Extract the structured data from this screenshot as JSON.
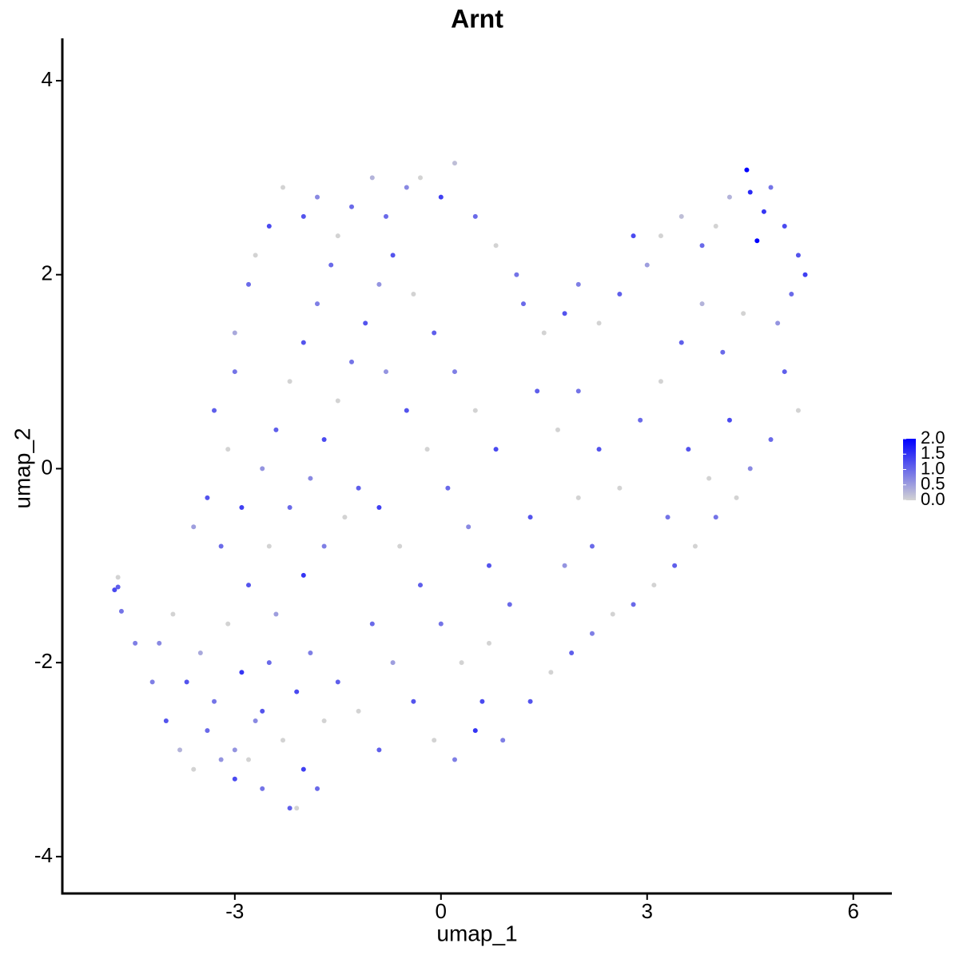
{
  "chart_data": {
    "type": "scatter",
    "title": "Arnt",
    "x_label": "umap_1",
    "y_label": "umap_2",
    "x": [
      -4.2,
      -4.0,
      -3.8,
      -3.6,
      -3.4,
      -3.2,
      -3.0,
      -2.8,
      -2.6,
      -2.2,
      -2.1,
      -2.0,
      -1.8,
      -4.1,
      -3.9,
      -3.7,
      -3.5,
      -3.3,
      -3.1,
      -2.9,
      -2.7,
      -2.5,
      -2.3,
      -2.1,
      -1.9,
      -1.7,
      -1.5,
      -2.4,
      -4.75,
      -4.7,
      -4.7,
      -4.45,
      -4.65,
      -3.0,
      -2.6,
      -3.2,
      -3.4,
      -3.1,
      -3.3,
      -3.0,
      -3.0,
      -2.8,
      -2.7,
      -2.5,
      -2.3,
      -2.0,
      -1.8,
      -1.5,
      -1.3,
      -1.0,
      -2.9,
      -2.6,
      -2.4,
      -2.2,
      -2.0,
      -1.8,
      -1.6,
      -2.5,
      -2.2,
      -1.9,
      -1.7,
      -1.5,
      -1.3,
      -1.1,
      -0.9,
      -2.0,
      -1.7,
      -1.4,
      -1.2,
      -3.6,
      -2.8,
      -0.8,
      -0.5,
      -0.3,
      0.0,
      0.2,
      0.5,
      0.8,
      1.1,
      -0.7,
      -0.4,
      -0.1,
      0.2,
      0.5,
      0.8,
      -0.8,
      -0.5,
      -0.2,
      0.1,
      0.4,
      0.7,
      -0.9,
      -0.6,
      -0.3,
      0.0,
      0.3,
      0.6,
      0.9,
      -1.0,
      -0.7,
      -0.4,
      -0.1,
      0.2,
      -0.9,
      -1.2,
      0.5,
      0.7,
      1.0,
      1.2,
      1.5,
      1.8,
      2.0,
      2.3,
      2.6,
      2.8,
      3.0,
      3.2,
      3.5,
      3.8,
      4.0,
      4.2,
      4.45,
      4.5,
      4.6,
      4.7,
      4.8,
      5.0,
      5.2,
      5.3,
      5.1,
      4.9,
      5.0,
      5.2,
      4.8,
      4.5,
      4.3,
      4.0,
      3.7,
      3.4,
      3.1,
      2.8,
      2.5,
      2.2,
      1.9,
      1.6,
      1.3,
      1.4,
      1.7,
      2.0,
      2.3,
      2.6,
      2.9,
      3.2,
      3.5,
      3.8,
      4.1,
      4.4,
      3.6,
      3.9,
      2.2,
      1.8,
      1.3,
      2.0,
      3.3,
      4.2
    ],
    "y": [
      -2.2,
      -2.6,
      -2.9,
      -3.1,
      -2.7,
      -3.0,
      -3.2,
      -3.0,
      -3.3,
      -3.5,
      -3.5,
      -3.1,
      -3.3,
      -1.8,
      -1.5,
      -2.2,
      -1.9,
      -2.4,
      -1.6,
      -2.1,
      -2.6,
      -2.0,
      -2.8,
      -2.3,
      -1.9,
      -2.6,
      -2.2,
      -1.5,
      -1.25,
      -1.22,
      -1.12,
      -1.8,
      -1.47,
      -2.9,
      -2.5,
      -0.8,
      -0.3,
      0.2,
      0.6,
      1.0,
      1.4,
      1.9,
      2.2,
      2.5,
      2.9,
      2.6,
      2.8,
      2.4,
      2.7,
      3.0,
      -0.4,
      0.0,
      0.4,
      0.9,
      1.3,
      1.7,
      2.1,
      -0.8,
      -0.4,
      -0.1,
      0.3,
      0.7,
      1.1,
      1.5,
      1.9,
      -1.1,
      -0.8,
      -0.5,
      -0.2,
      -0.6,
      -1.2,
      2.6,
      2.9,
      3.0,
      2.8,
      3.15,
      2.6,
      2.3,
      2.0,
      2.2,
      1.8,
      1.4,
      1.0,
      0.6,
      0.2,
      1.0,
      0.6,
      0.2,
      -0.2,
      -0.6,
      -1.0,
      -0.4,
      -0.8,
      -1.2,
      -1.6,
      -2.0,
      -2.4,
      -2.8,
      -1.6,
      -2.0,
      -2.4,
      -2.8,
      -3.0,
      -2.9,
      -2.5,
      -2.7,
      -1.8,
      -1.4,
      1.7,
      1.4,
      1.6,
      1.9,
      1.5,
      1.8,
      2.4,
      2.1,
      2.4,
      2.6,
      2.3,
      2.5,
      2.8,
      3.08,
      2.85,
      2.35,
      2.65,
      2.9,
      2.5,
      2.2,
      2.0,
      1.8,
      1.5,
      1.0,
      0.6,
      0.3,
      0.0,
      -0.3,
      -0.5,
      -0.8,
      -1.0,
      -1.2,
      -1.4,
      -1.5,
      -1.7,
      -1.9,
      -2.1,
      -2.4,
      0.8,
      0.4,
      0.8,
      0.2,
      -0.2,
      0.5,
      0.9,
      1.3,
      1.7,
      1.2,
      1.6,
      0.2,
      -0.1,
      -0.8,
      -1.0,
      -0.5,
      -0.3,
      -0.5,
      0.5
    ],
    "values": [
      0.8,
      1.2,
      0.3,
      0,
      1.0,
      0.6,
      1.3,
      0,
      0.9,
      1.1,
      0,
      1.4,
      1.0,
      0.7,
      0,
      1.2,
      0.4,
      0.9,
      0,
      1.5,
      0.7,
      1.0,
      0,
      1.3,
      0.8,
      0,
      1.1,
      0.5,
      1.3,
      1.1,
      0,
      0.8,
      0.9,
      0.6,
      1.2,
      1.0,
      1.2,
      0,
      1.1,
      0.9,
      0.4,
      1.0,
      0,
      1.3,
      0,
      1.2,
      0.7,
      0,
      1.0,
      0.3,
      1.4,
      0.6,
      1.1,
      0,
      1.2,
      0.8,
      1.0,
      0,
      1.0,
      0.7,
      1.3,
      0,
      0.9,
      1.2,
      0.6,
      1.5,
      0.8,
      0,
      1.1,
      0.5,
      1.2,
      1.0,
      0.7,
      0,
      1.4,
      0.2,
      1.0,
      0,
      0.9,
      1.2,
      0,
      1.1,
      0.8,
      0,
      1.3,
      0.6,
      1.2,
      0,
      1.0,
      0.7,
      1.2,
      1.4,
      0,
      1.1,
      0.9,
      0,
      1.3,
      0.8,
      1.0,
      0.5,
      1.2,
      0,
      0.8,
      1.1,
      0,
      1.5,
      0,
      1.0,
      1.0,
      0,
      1.2,
      0.8,
      0,
      1.1,
      1.3,
      0.5,
      0,
      0.2,
      1.0,
      0,
      0.3,
      2.0,
      1.6,
      2.0,
      1.5,
      0.9,
      1.3,
      1.2,
      1.4,
      1.0,
      0.6,
      1.1,
      0,
      1.0,
      0.7,
      0,
      0.9,
      0,
      1.1,
      0,
      1.0,
      0,
      0.8,
      1.1,
      0,
      1.2,
      1.1,
      0,
      0.9,
      1.2,
      0,
      1.0,
      0,
      1.1,
      0.3,
      1.0,
      0,
      1.2,
      0,
      1.0,
      0.6,
      1.2,
      0,
      0.9,
      1.3
    ],
    "xlim": [
      -5.51,
      6.55
    ],
    "ylim": [
      -4.38,
      4.42
    ],
    "xticks": [
      -3,
      0,
      3,
      6
    ],
    "yticks": [
      -4,
      -2,
      0,
      2,
      4
    ],
    "color_scale": {
      "low": "#d3d3d3",
      "high": "#0000ff",
      "lim": [
        0,
        2
      ],
      "ticks": [
        {
          "value": 0,
          "label": "0.0"
        },
        {
          "value": 0.5,
          "label": "0.5"
        },
        {
          "value": 1,
          "label": "1.0"
        },
        {
          "value": 1.5,
          "label": "1.5"
        },
        {
          "value": 2,
          "label": "2.0"
        }
      ]
    }
  }
}
